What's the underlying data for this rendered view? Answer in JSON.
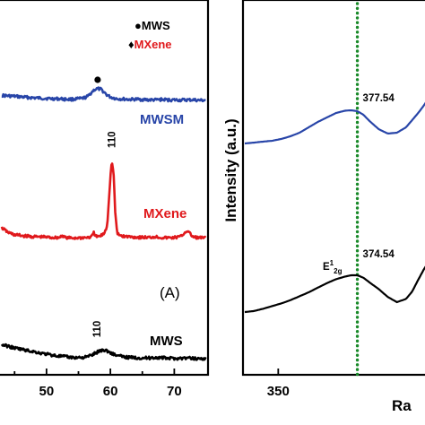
{
  "chart_data": [
    {
      "type": "line",
      "panel_label": "(A)",
      "xlim": [
        43,
        75
      ],
      "xticks": [
        50,
        60,
        70
      ],
      "legend": [
        {
          "marker": "●",
          "label": "MWS",
          "color": "#000000"
        },
        {
          "marker": "♦",
          "label": "MXene",
          "color": "#e0191c"
        }
      ],
      "series": [
        {
          "name": "MWSM",
          "color": "#2845a8",
          "x": [
            43.0,
            44.0,
            45.0,
            46.0,
            47.0,
            48.0,
            49.0,
            50.0,
            51.0,
            52.0,
            53.0,
            54.0,
            55.0,
            55.5,
            56.0,
            56.5,
            57.0,
            57.5,
            58.0,
            58.5,
            59.0,
            59.5,
            60.0,
            61.0,
            62.0,
            63.0,
            64.0,
            65.0,
            66.0,
            67.0,
            68.0,
            69.0,
            70.0,
            71.0,
            72.0,
            73.0,
            74.0,
            75.0
          ],
          "y": [
            0.4,
            0.36,
            0.33,
            0.28,
            0.24,
            0.21,
            0.18,
            0.16,
            0.13,
            0.13,
            0.09,
            0.09,
            0.13,
            0.15,
            0.22,
            0.32,
            0.62,
            0.86,
            0.93,
            0.88,
            0.66,
            0.42,
            0.26,
            0.13,
            0.11,
            0.07,
            0.09,
            0.07,
            0.04,
            0.04,
            0.07,
            0.04,
            0.04,
            0.02,
            0.04,
            0.04,
            0.0,
            0.02
          ],
          "markers": [
            {
              "x": 58.0,
              "symbol": "●"
            }
          ]
        },
        {
          "name": "MXene",
          "color": "#e0191c",
          "x": [
            43.0,
            44.0,
            45.0,
            46.0,
            47.0,
            48.0,
            49.0,
            50.0,
            51.0,
            52.0,
            52.5,
            53.0,
            54.0,
            55.0,
            56.0,
            57.0,
            57.4,
            57.8,
            58.5,
            59.0,
            59.5,
            59.9,
            60.2,
            60.5,
            60.8,
            61.1,
            61.5,
            62.0,
            63.0,
            64.0,
            65.0,
            66.0,
            67.0,
            68.0,
            69.0,
            70.0,
            71.0,
            71.5,
            72.0,
            72.5,
            73.0,
            74.0,
            75.0
          ],
          "y": [
            0.82,
            0.46,
            0.28,
            0.22,
            0.17,
            0.13,
            0.13,
            0.1,
            0.07,
            0.07,
            0.24,
            0.05,
            0.03,
            0.05,
            0.07,
            0.1,
            0.43,
            0.12,
            0.2,
            0.38,
            0.97,
            4.0,
            6.0,
            5.0,
            1.62,
            0.35,
            0.24,
            0.17,
            0.14,
            0.1,
            0.09,
            0.07,
            0.14,
            0.07,
            0.05,
            0.07,
            0.14,
            0.38,
            0.6,
            0.35,
            0.1,
            0.05,
            0.03
          ],
          "peak_labels": [
            {
              "x": 60.2,
              "text": "110"
            }
          ]
        },
        {
          "name": "MWS",
          "color": "#000000",
          "x": [
            43.0,
            44.0,
            45.0,
            46.0,
            47.0,
            48.0,
            49.0,
            50.0,
            51.0,
            52.0,
            53.0,
            54.0,
            55.0,
            56.0,
            56.5,
            57.0,
            57.5,
            58.0,
            58.5,
            59.0,
            59.5,
            60.0,
            60.5,
            61.0,
            62.0,
            63.0,
            64.0,
            65.0,
            66.0,
            67.0,
            68.0,
            69.0,
            70.0,
            71.0,
            72.0,
            73.0,
            74.0,
            75.0
          ],
          "y": [
            1.56,
            1.38,
            1.18,
            1.06,
            0.9,
            0.79,
            0.62,
            0.51,
            0.38,
            0.28,
            0.21,
            0.13,
            0.13,
            0.15,
            0.24,
            0.38,
            0.56,
            0.74,
            0.92,
            0.97,
            0.87,
            0.66,
            0.51,
            0.36,
            0.21,
            0.13,
            0.1,
            0.08,
            0.07,
            0.13,
            0.1,
            0.05,
            0.03,
            0.05,
            0.07,
            0.03,
            0.0,
            0.02
          ],
          "peak_labels": [
            {
              "x": 59.0,
              "text": "110"
            }
          ]
        }
      ]
    },
    {
      "type": "line",
      "ylabel": "Intensity (a.u.)",
      "xlabel_visible": "Ra",
      "xlim": [
        339,
        400
      ],
      "xticks": [
        350
      ],
      "reference_line": {
        "x": 376.0,
        "color": "#1a8a2a",
        "style": "dotted"
      },
      "series": [
        {
          "name": "",
          "color": "#2845a8",
          "x": [
            339,
            342,
            345,
            348,
            351,
            354,
            357,
            360,
            363,
            366,
            369,
            372,
            374,
            376,
            378,
            380,
            383,
            386,
            389,
            392,
            394,
            396,
            398,
            400
          ],
          "y": [
            0.0,
            0.08,
            0.17,
            0.25,
            0.42,
            0.67,
            1.0,
            1.5,
            2.0,
            2.42,
            2.83,
            3.05,
            3.08,
            3.0,
            2.67,
            2.08,
            1.33,
            0.92,
            1.0,
            1.5,
            2.17,
            2.83,
            3.58,
            4.5
          ],
          "annotations": [
            {
              "x": 377.54,
              "text": "377.54"
            }
          ]
        },
        {
          "name": "",
          "color": "#000000",
          "x": [
            339,
            342,
            345,
            348,
            351,
            354,
            357,
            360,
            363,
            366,
            369,
            372,
            374,
            376,
            378,
            380,
            383,
            386,
            389,
            392,
            394,
            396,
            398,
            400
          ],
          "y": [
            0.0,
            0.1,
            0.33,
            0.6,
            0.87,
            1.2,
            1.6,
            2.0,
            2.47,
            2.93,
            3.33,
            3.6,
            3.73,
            3.73,
            3.47,
            3.0,
            2.33,
            1.53,
            1.0,
            1.33,
            2.07,
            3.27,
            4.4,
            5.33
          ],
          "annotations": [
            {
              "x": 374.54,
              "text": "374.54",
              "mode": "E¹₂g"
            }
          ]
        }
      ]
    }
  ]
}
